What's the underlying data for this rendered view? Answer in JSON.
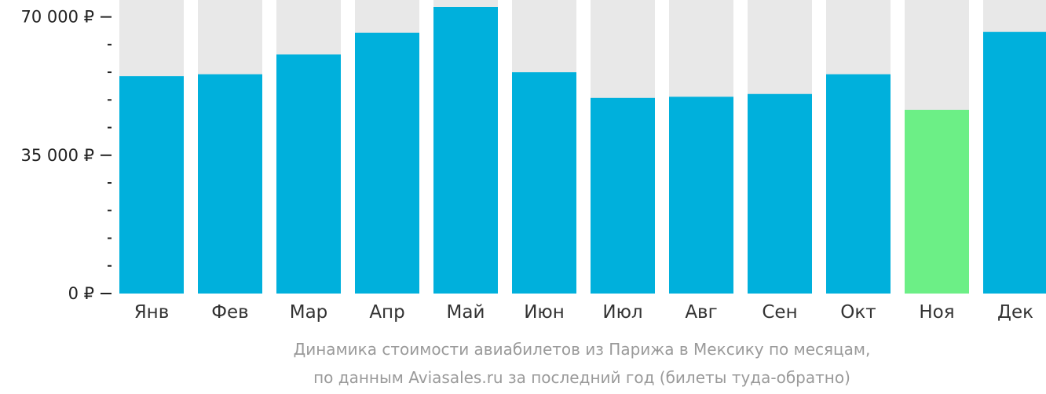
{
  "chart_data": {
    "type": "bar",
    "categories": [
      "Янв",
      "Фев",
      "Мар",
      "Апр",
      "Май",
      "Июн",
      "Июл",
      "Авг",
      "Сен",
      "Окт",
      "Ноя",
      "Дек"
    ],
    "values": [
      55000,
      55500,
      60500,
      66000,
      72500,
      56000,
      49500,
      49800,
      50500,
      55500,
      46500,
      66200
    ],
    "highlight_index": 10,
    "ylim": [
      0,
      72500
    ],
    "y_ticks": [
      {
        "value": 0,
        "label": "0 ₽"
      },
      {
        "value": 35000,
        "label": "35 000 ₽"
      },
      {
        "value": 70000,
        "label": "70 000 ₽"
      }
    ],
    "y_minor_step": 7000,
    "grid": false,
    "xlabel": "",
    "ylabel": "",
    "caption_lines": [
      "Динамика стоимости авиабилетов из Парижа в Мексику по месяцам,",
      "по данным Aviasales.ru за последний год (билеты туда-обратно)"
    ]
  },
  "colors": {
    "bar": "#00b0dc",
    "bar_highlight": "#6cef86",
    "bar_background": "#e8e8e8",
    "axis": "#222222",
    "caption": "#9a9a9a"
  }
}
